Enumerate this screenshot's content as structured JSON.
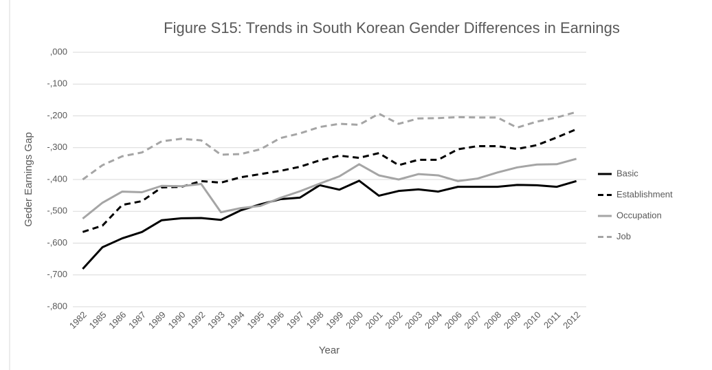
{
  "chart_data": {
    "type": "line",
    "title": "Figure S15: Trends in South Korean Gender Differences in Earnings",
    "x_label": "Year",
    "y_label": "Geder Earnings Gap",
    "categories": [
      "1982",
      "1985",
      "1986",
      "1987",
      "1989",
      "1990",
      "1992",
      "1993",
      "1994",
      "1995",
      "1996",
      "1997",
      "1998",
      "1999",
      "2000",
      "2001",
      "2002",
      "2003",
      "2004",
      "2006",
      "2007",
      "2008",
      "2009",
      "2010",
      "2011",
      "2012"
    ],
    "series": [
      {
        "name": "Basic",
        "color": "#000000",
        "dash": false,
        "values": [
          -0.681,
          -0.613,
          -0.585,
          -0.565,
          -0.528,
          -0.522,
          -0.521,
          -0.527,
          -0.497,
          -0.478,
          -0.462,
          -0.457,
          -0.418,
          -0.432,
          -0.404,
          -0.451,
          -0.436,
          -0.431,
          -0.438,
          -0.423,
          -0.423,
          -0.423,
          -0.417,
          -0.418,
          -0.423,
          -0.405
        ]
      },
      {
        "name": "Establishment",
        "color": "#000000",
        "dash": true,
        "values": [
          -0.565,
          -0.545,
          -0.48,
          -0.468,
          -0.425,
          -0.423,
          -0.405,
          -0.41,
          -0.393,
          -0.383,
          -0.373,
          -0.36,
          -0.34,
          -0.325,
          -0.332,
          -0.317,
          -0.355,
          -0.338,
          -0.338,
          -0.305,
          -0.295,
          -0.295,
          -0.304,
          -0.292,
          -0.268,
          -0.242
        ]
      },
      {
        "name": "Occupation",
        "color": "#a5a5a5",
        "dash": false,
        "values": [
          -0.523,
          -0.473,
          -0.438,
          -0.44,
          -0.42,
          -0.421,
          -0.414,
          -0.503,
          -0.49,
          -0.483,
          -0.458,
          -0.437,
          -0.413,
          -0.39,
          -0.352,
          -0.387,
          -0.4,
          -0.383,
          -0.387,
          -0.405,
          -0.397,
          -0.378,
          -0.362,
          -0.353,
          -0.352,
          -0.335
        ]
      },
      {
        "name": "Job",
        "color": "#a5a5a5",
        "dash": true,
        "values": [
          -0.4,
          -0.355,
          -0.327,
          -0.315,
          -0.28,
          -0.272,
          -0.277,
          -0.322,
          -0.32,
          -0.305,
          -0.27,
          -0.255,
          -0.235,
          -0.225,
          -0.228,
          -0.193,
          -0.225,
          -0.208,
          -0.207,
          -0.204,
          -0.205,
          -0.205,
          -0.237,
          -0.218,
          -0.205,
          -0.188
        ]
      }
    ],
    "ylim": [
      -0.8,
      0
    ],
    "yticks": [
      {
        "value": 0,
        "label": ",000"
      },
      {
        "value": -0.1,
        "label": "-,100"
      },
      {
        "value": -0.2,
        "label": "-,200"
      },
      {
        "value": -0.3,
        "label": "-,300"
      },
      {
        "value": -0.4,
        "label": "-,400"
      },
      {
        "value": -0.5,
        "label": "-,500"
      },
      {
        "value": -0.6,
        "label": "-,600"
      },
      {
        "value": -0.7,
        "label": "-,700"
      },
      {
        "value": -0.8,
        "label": "-,800"
      }
    ],
    "grid": true,
    "legend": "right"
  }
}
